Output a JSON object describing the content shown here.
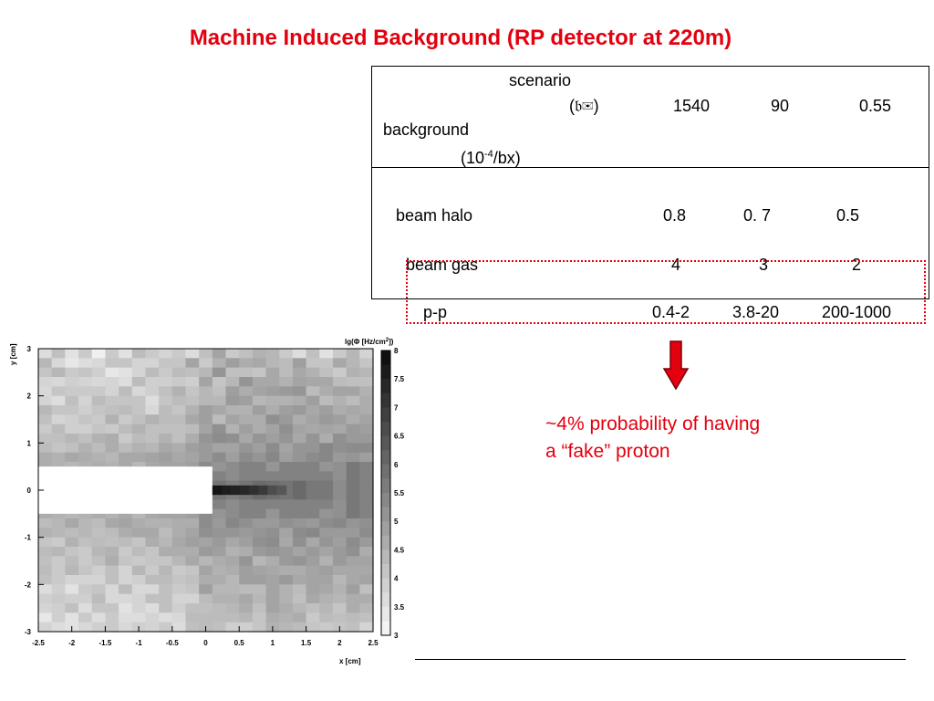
{
  "title": "Machine Induced Background (RP detector at 220m)",
  "table": {
    "scenario_label": "scenario",
    "optics_label": "(𝔟✉)",
    "background_label": "background",
    "units_base": "(10",
    "units_exp": "-4",
    "units_tail": "/bx)",
    "columns": [
      "1540",
      "90",
      "0.55"
    ],
    "rows": [
      {
        "name": "beam halo",
        "values": [
          "0.8",
          "0. 7",
          "0.5"
        ]
      },
      {
        "name": "beam gas",
        "values": [
          "4",
          "3",
          "2"
        ]
      },
      {
        "name": "p-p",
        "values": [
          "0.4-2",
          "3.8-20",
          "200-1000"
        ]
      }
    ]
  },
  "annotation": {
    "line1": "~4% probability of having",
    "line2": "a “fake” proton",
    "accent_color": "#e3000f"
  },
  "chart_data": {
    "type": "heatmap",
    "title": "lg(Φ [Hz/cm",
    "title_exp": "2",
    "title_tail": "])",
    "xlabel": "x [cm]",
    "ylabel": "y [cm]",
    "xlim": [
      -2.5,
      2.5
    ],
    "ylim": [
      -3,
      3
    ],
    "x_ticks": [
      "-2.5",
      "-2",
      "-1.5",
      "-1",
      "-0.5",
      "0",
      "0.5",
      "1",
      "1.5",
      "2",
      "2.5"
    ],
    "y_ticks": [
      "3",
      "2",
      "1",
      "0",
      "-1",
      "-2",
      "-3"
    ],
    "colorbar_ticks": [
      "8",
      "7.5",
      "7",
      "6.5",
      "6",
      "5.5",
      "5",
      "4.5",
      "4",
      "3.5",
      "3"
    ],
    "zlim": [
      3,
      8
    ],
    "grid_cols": 25,
    "grid_rows": 30,
    "empty_region": {
      "x": [
        -2.5,
        0.1
      ],
      "y": [
        -0.5,
        0.5
      ]
    },
    "hot_row": {
      "y": [
        -0.1,
        0.1
      ],
      "x": [
        0.1,
        1.2
      ],
      "values": [
        7.8,
        7.6,
        7.5,
        7.4,
        7.2,
        7.0,
        6.6,
        6.4
      ]
    },
    "values": [
      [
        3.6,
        4.2,
        3.5,
        4.0,
        3.2,
        4.0,
        3.5,
        4.3,
        4.0,
        3.8,
        4.0,
        3.6,
        4.2,
        4.8,
        4.0,
        4.2,
        4.5,
        4.4,
        4.0,
        3.6,
        4.2,
        3.5,
        4.0,
        4.4,
        3.8
      ],
      [
        4.4,
        3.7,
        3.4,
        3.6,
        3.7,
        4.1,
        4.1,
        3.8,
        3.8,
        4.1,
        4.1,
        4.8,
        4.0,
        4.5,
        4.9,
        4.6,
        4.7,
        4.4,
        4.3,
        4.9,
        4.1,
        4.1,
        4.7,
        4.4,
        4.1
      ],
      [
        4.1,
        4.4,
        4.0,
        4.1,
        3.9,
        3.4,
        3.5,
        3.8,
        4.3,
        4.0,
        4.3,
        4.2,
        4.4,
        5.1,
        4.2,
        4.2,
        4.1,
        4.7,
        4.3,
        4.7,
        4.5,
        4.2,
        4.0,
        4.5,
        4.4
      ],
      [
        3.8,
        3.7,
        3.9,
        3.8,
        3.7,
        3.8,
        3.6,
        4.3,
        3.9,
        3.9,
        4.0,
        3.9,
        4.8,
        4.1,
        4.4,
        5.1,
        4.7,
        4.7,
        4.5,
        4.8,
        4.7,
        4.7,
        4.3,
        4.2,
        4.2
      ],
      [
        3.7,
        4.1,
        4.0,
        4.0,
        4.0,
        3.8,
        4.3,
        3.7,
        3.9,
        4.2,
        4.5,
        4.1,
        4.4,
        4.2,
        4.9,
        4.6,
        4.8,
        4.9,
        5.0,
        5.1,
        4.3,
        4.6,
        4.8,
        4.8,
        4.5
      ],
      [
        3.8,
        3.6,
        4.2,
        3.8,
        4.3,
        4.1,
        4.1,
        4.1,
        3.6,
        4.1,
        4.3,
        4.2,
        4.4,
        4.4,
        5.0,
        4.9,
        4.4,
        4.5,
        4.5,
        4.6,
        4.9,
        4.3,
        4.5,
        4.3,
        4.6
      ],
      [
        4.4,
        4.1,
        4.1,
        3.9,
        4.1,
        4.2,
        4.3,
        4.1,
        3.7,
        4.3,
        4.1,
        4.5,
        4.9,
        4.7,
        4.5,
        4.5,
        4.9,
        4.6,
        4.9,
        5.0,
        4.7,
        4.9,
        4.6,
        4.7,
        4.6
      ],
      [
        4.2,
        3.8,
        3.9,
        4.1,
        4.0,
        4.5,
        4.0,
        4.2,
        4.5,
        4.3,
        4.3,
        4.7,
        4.9,
        4.3,
        4.8,
        4.6,
        4.6,
        5.2,
        5.0,
        4.6,
        4.8,
        5.0,
        4.9,
        4.6,
        4.8
      ],
      [
        4.0,
        4.3,
        3.9,
        3.9,
        4.1,
        4.0,
        4.3,
        4.5,
        4.2,
        4.2,
        4.2,
        4.3,
        4.8,
        5.2,
        4.5,
        4.9,
        4.6,
        4.8,
        5.2,
        4.8,
        4.7,
        4.8,
        4.7,
        5.0,
        4.9
      ],
      [
        4.2,
        4.2,
        4.4,
        4.2,
        4.5,
        4.6,
        4.0,
        4.3,
        4.2,
        4.5,
        4.2,
        4.6,
        5.1,
        5.3,
        5.2,
        4.7,
        5.1,
        4.9,
        5.1,
        4.7,
        5.1,
        4.6,
        5.2,
        5.0,
        5.0
      ],
      [
        4.3,
        4.1,
        4.2,
        4.5,
        4.3,
        4.6,
        4.3,
        4.5,
        4.4,
        4.7,
        4.6,
        4.9,
        5.0,
        4.8,
        4.8,
        5.1,
        4.9,
        5.3,
        4.8,
        5.1,
        5.1,
        5.4,
        5.2,
        5.3,
        5.3
      ],
      [
        4.6,
        4.5,
        4.7,
        4.6,
        4.5,
        4.4,
        4.7,
        4.7,
        4.8,
        4.9,
        4.7,
        4.8,
        5.0,
        5.3,
        4.9,
        5.3,
        5.1,
        5.4,
        4.9,
        5.1,
        5.3,
        5.4,
        5.0,
        5.1,
        4.9
      ],
      [
        4.6,
        4.5,
        4.4,
        4.5,
        4.6,
        4.5,
        4.7,
        4.4,
        4.7,
        4.8,
        4.8,
        4.9,
        5.3,
        5.1,
        5.3,
        5.5,
        5.5,
        5.1,
        5.5,
        5.5,
        5.5,
        5.1,
        5.2,
        5.7,
        5.5
      ],
      [
        4.6,
        4.5,
        4.4,
        4.5,
        4.6,
        4.5,
        4.7,
        4.4,
        4.7,
        4.8,
        4.8,
        4.9,
        5.3,
        5.5,
        5.3,
        5.5,
        5.5,
        5.5,
        5.5,
        5.5,
        5.5,
        5.5,
        5.2,
        5.7,
        5.5
      ],
      [
        4.6,
        4.5,
        4.4,
        4.5,
        4.6,
        4.5,
        4.7,
        4.4,
        4.7,
        4.8,
        4.8,
        4.9,
        5.3,
        5.8,
        5.6,
        5.8,
        6.0,
        5.9,
        5.8,
        6.0,
        5.7,
        5.7,
        5.3,
        5.7,
        5.5
      ],
      [
        4.6,
        4.5,
        4.4,
        4.5,
        4.6,
        4.5,
        4.7,
        4.4,
        4.7,
        4.8,
        4.8,
        4.9,
        5.3,
        5.8,
        5.6,
        5.8,
        6.0,
        5.9,
        5.8,
        6.0,
        5.7,
        5.7,
        5.3,
        5.7,
        5.5
      ],
      [
        4.6,
        4.5,
        4.4,
        4.5,
        4.6,
        4.5,
        4.7,
        4.4,
        4.7,
        4.8,
        4.8,
        4.9,
        5.3,
        5.5,
        5.3,
        5.5,
        5.5,
        5.5,
        5.5,
        5.5,
        5.5,
        5.5,
        5.2,
        5.7,
        5.5
      ],
      [
        4.6,
        4.5,
        4.4,
        4.5,
        4.6,
        4.5,
        4.7,
        4.4,
        4.7,
        4.8,
        4.8,
        4.9,
        5.3,
        5.1,
        5.3,
        5.5,
        5.5,
        5.1,
        5.5,
        5.5,
        5.5,
        5.1,
        5.2,
        5.7,
        5.5
      ],
      [
        4.3,
        4.4,
        4.7,
        4.4,
        4.3,
        4.7,
        4.8,
        4.6,
        4.5,
        4.5,
        4.6,
        4.6,
        5.3,
        5.0,
        5.4,
        5.2,
        5.0,
        5.0,
        5.2,
        5.1,
        5.0,
        5.3,
        5.4,
        5.1,
        5.2
      ],
      [
        4.5,
        4.4,
        4.3,
        4.4,
        4.2,
        4.3,
        4.6,
        4.7,
        4.7,
        4.3,
        4.6,
        4.8,
        5.2,
        5.1,
        5.1,
        5.0,
        5.1,
        5.2,
        4.8,
        5.3,
        5.4,
        5.0,
        5.0,
        5.0,
        5.3
      ],
      [
        4.1,
        4.0,
        4.5,
        4.2,
        4.3,
        4.2,
        4.3,
        4.1,
        4.6,
        4.4,
        4.7,
        4.9,
        4.8,
        5.0,
        4.7,
        4.9,
        5.2,
        5.3,
        4.7,
        5.2,
        4.7,
        5.1,
        4.9,
        5.3,
        5.0
      ],
      [
        4.3,
        4.4,
        4.1,
        4.0,
        4.4,
        4.5,
        4.0,
        4.3,
        4.1,
        4.6,
        4.6,
        4.6,
        5.0,
        4.9,
        4.5,
        4.6,
        5.0,
        5.1,
        5.0,
        4.8,
        5.0,
        4.8,
        5.0,
        5.2,
        4.6
      ],
      [
        4.2,
        4.0,
        4.3,
        4.0,
        4.2,
        4.6,
        4.1,
        4.0,
        4.1,
        4.1,
        4.4,
        4.7,
        4.4,
        4.6,
        4.7,
        5.1,
        4.4,
        4.6,
        5.0,
        5.1,
        4.9,
        4.5,
        5.0,
        4.8,
        4.8
      ],
      [
        4.3,
        4.0,
        4.4,
        4.1,
        3.9,
        4.2,
        3.8,
        4.4,
        4.0,
        4.4,
        4.0,
        4.1,
        4.8,
        4.5,
        4.6,
        4.9,
        4.8,
        4.7,
        4.6,
        4.6,
        4.8,
        4.9,
        4.7,
        4.7,
        4.7
      ],
      [
        4.2,
        4.0,
        3.8,
        3.8,
        3.8,
        4.2,
        3.8,
        3.9,
        4.3,
        4.3,
        4.1,
        4.2,
        4.6,
        4.6,
        4.4,
        4.9,
        4.9,
        4.8,
        5.0,
        4.7,
        4.8,
        4.8,
        4.4,
        4.7,
        4.8
      ],
      [
        3.6,
        3.9,
        3.5,
        4.0,
        4.1,
        3.7,
        4.3,
        3.7,
        3.7,
        4.2,
        4.0,
        4.1,
        4.9,
        4.4,
        4.4,
        4.3,
        4.3,
        4.8,
        4.5,
        4.3,
        4.8,
        4.7,
        4.5,
        4.9,
        4.2
      ],
      [
        3.9,
        4.0,
        3.9,
        3.9,
        4.3,
        3.7,
        3.7,
        3.8,
        4.2,
        4.2,
        3.8,
        3.8,
        4.3,
        4.5,
        4.5,
        4.7,
        4.4,
        4.8,
        4.5,
        4.2,
        4.7,
        4.5,
        4.4,
        4.6,
        4.6
      ],
      [
        3.8,
        3.9,
        4.2,
        3.6,
        4.1,
        4.1,
        3.5,
        3.8,
        3.6,
        4.2,
        3.9,
        4.2,
        4.2,
        4.3,
        4.4,
        4.6,
        4.2,
        4.8,
        4.6,
        4.4,
        4.2,
        4.4,
        4.1,
        4.6,
        4.4
      ],
      [
        3.4,
        3.9,
        3.5,
        4.0,
        3.6,
        4.0,
        3.6,
        3.6,
        3.8,
        3.6,
        3.7,
        4.3,
        4.3,
        4.3,
        4.3,
        4.4,
        4.1,
        4.6,
        4.5,
        4.6,
        4.0,
        4.3,
        4.2,
        4.3,
        4.2
      ],
      [
        3.8,
        3.6,
        3.5,
        3.7,
        3.9,
        4.0,
        3.7,
        3.9,
        3.8,
        4.0,
        3.6,
        4.2,
        4.3,
        4.2,
        3.9,
        3.9,
        4.1,
        4.5,
        4.4,
        4.3,
        4.1,
        4.0,
        4.1,
        4.2,
        3.8
      ]
    ]
  }
}
